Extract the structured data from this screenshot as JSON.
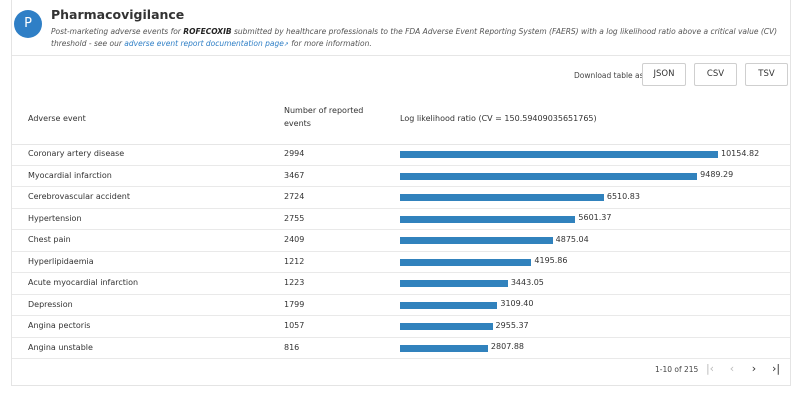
{
  "header": {
    "avatar_letter": "P",
    "title": "Pharmacovigilance",
    "description_prefix": "Post-marketing adverse events for",
    "drug": "ROFECOXIB",
    "description_middle": "submitted by healthcare professionals to the FDA Adverse Event Reporting System (FAERS) with a log likelihood ratio above a critical value (CV) threshold - see our",
    "doc_link": "adverse event report documentation page",
    "link_icon": "external-link-icon",
    "description_suffix": "for more information."
  },
  "download": {
    "label": "Download table as",
    "json": "JSON",
    "csv": "CSV",
    "tsv": "TSV"
  },
  "table": {
    "columns": {
      "event": "Adverse event",
      "count": "Number of reported events",
      "llr": "Log likelihood ratio (CV = 150.59409035651765)"
    },
    "bar_color": "#3182bd",
    "rows": [
      {
        "event": "Coronary artery disease",
        "count": "2994",
        "llr": "10154.82"
      },
      {
        "event": "Myocardial infarction",
        "count": "3467",
        "llr": "9489.29"
      },
      {
        "event": "Cerebrovascular accident",
        "count": "2724",
        "llr": "6510.83"
      },
      {
        "event": "Hypertension",
        "count": "2755",
        "llr": "5601.37"
      },
      {
        "event": "Chest pain",
        "count": "2409",
        "llr": "4875.04"
      },
      {
        "event": "Hyperlipidaemia",
        "count": "1212",
        "llr": "4195.86"
      },
      {
        "event": "Acute myocardial infarction",
        "count": "1223",
        "llr": "3443.05"
      },
      {
        "event": "Depression",
        "count": "1799",
        "llr": "3109.40"
      },
      {
        "event": "Angina pectoris",
        "count": "1057",
        "llr": "2955.37"
      },
      {
        "event": "Angina unstable",
        "count": "816",
        "llr": "2807.88"
      }
    ]
  },
  "pagination": {
    "range": "1-10 of 215",
    "first_icon": "first-page-icon",
    "prev_icon": "previous-page-icon",
    "next_icon": "next-page-icon",
    "last_icon": "last-page-icon"
  }
}
